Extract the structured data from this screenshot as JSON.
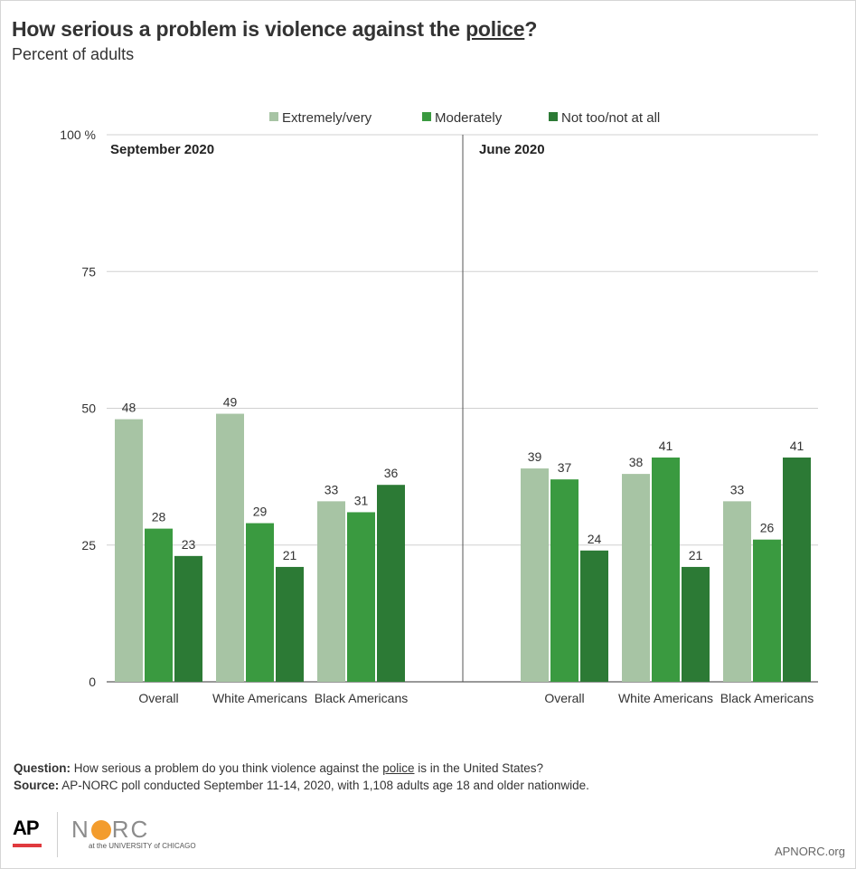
{
  "title_pre": "How serious a problem is violence against the ",
  "title_link": "police",
  "title_post": "?",
  "subtitle": "Percent of adults",
  "notes": {
    "question_label": "Question:",
    "question_pre": " How serious a problem do you think violence against the ",
    "question_link": "police",
    "question_post": " is in the United States?",
    "source_label": "Source:",
    "source_text": " AP-NORC poll conducted September 11-14, 2020, with 1,108 adults age 18 and older nationwide."
  },
  "logos": {
    "ap": "AP",
    "norc_n": "N",
    "norc_rc": "RC",
    "norc_sub": "at the UNIVERSITY of CHICAGO"
  },
  "site": "APNORC.org",
  "colors": {
    "extremely": "#a7c4a4",
    "moderately": "#3a9a40",
    "not_too": "#2c7a35",
    "grid": "#d0d0d0",
    "axis": "#333333"
  },
  "chart_data": {
    "type": "bar",
    "legend_position": "top",
    "series_names": [
      "Extremely/very",
      "Moderately",
      "Not too/not at all"
    ],
    "y_ticks": [
      "100 %",
      "75",
      "50",
      "25",
      "0"
    ],
    "ylim": [
      0,
      100
    ],
    "grid": true,
    "panels": [
      {
        "label": "September 2020",
        "categories": [
          "Overall",
          "White Americans",
          "Black Americans"
        ],
        "series": [
          {
            "name": "Extremely/very",
            "values": [
              48,
              49,
              33
            ]
          },
          {
            "name": "Moderately",
            "values": [
              28,
              29,
              31
            ]
          },
          {
            "name": "Not too/not at all",
            "values": [
              23,
              21,
              36
            ]
          }
        ]
      },
      {
        "label": "June 2020",
        "categories": [
          "Overall",
          "White Americans",
          "Black Americans"
        ],
        "series": [
          {
            "name": "Extremely/very",
            "values": [
              39,
              38,
              33
            ]
          },
          {
            "name": "Moderately",
            "values": [
              37,
              41,
              26
            ]
          },
          {
            "name": "Not too/not at all",
            "values": [
              24,
              21,
              41
            ]
          }
        ]
      }
    ]
  }
}
